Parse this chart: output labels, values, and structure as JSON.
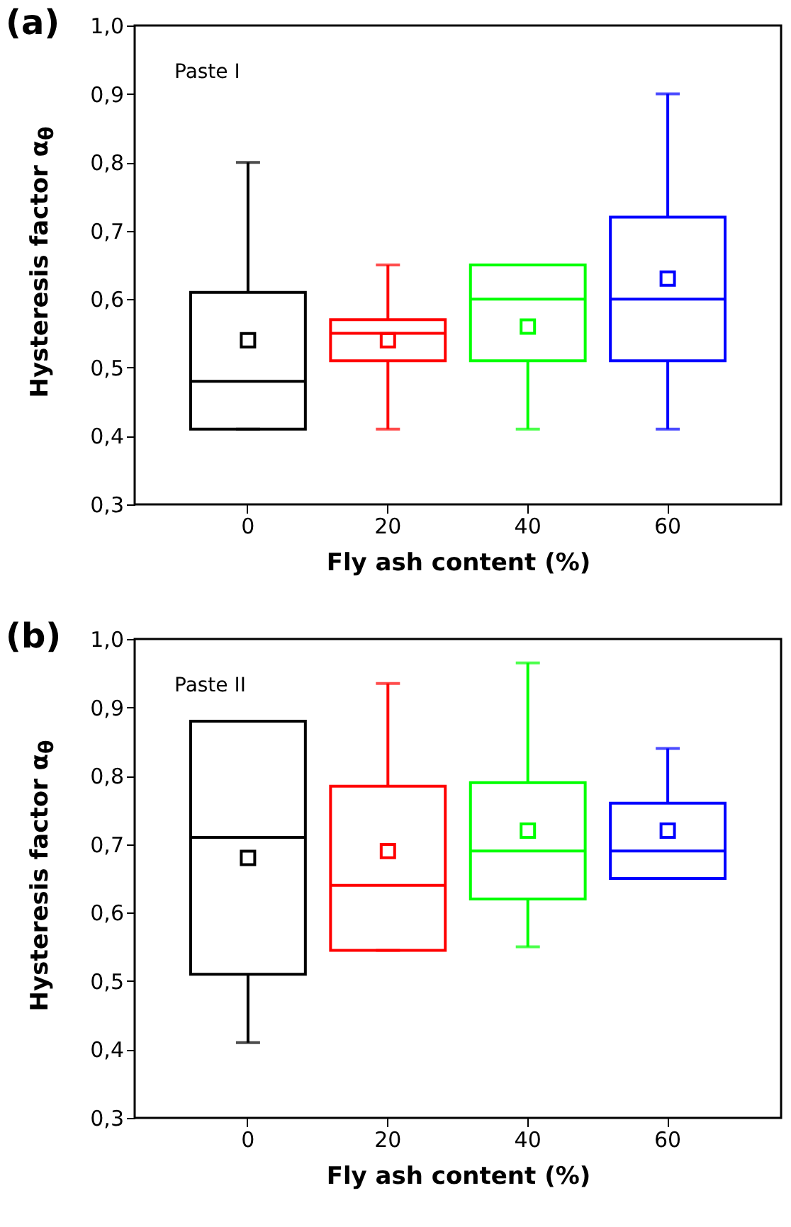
{
  "chart_data": [
    {
      "type": "box",
      "xlabel": "Fly ash content (%)",
      "ylabel": "Hysteresis factor α$_{θ}$",
      "annotations": [
        "(a)",
        "Paste I"
      ],
      "categories": [
        "0",
        "20",
        "40",
        "60"
      ],
      "colors": [
        "#000000",
        "#ff0000",
        "#00ff00",
        "#0000ff"
      ],
      "boxes": [
        {
          "low": 0.41,
          "q1": 0.41,
          "median": 0.48,
          "q3": 0.61,
          "high": 0.8,
          "mean": 0.54
        },
        {
          "low": 0.41,
          "q1": 0.51,
          "median": 0.55,
          "q3": 0.57,
          "high": 0.65,
          "mean": 0.54
        },
        {
          "low": 0.41,
          "q1": 0.51,
          "median": 0.6,
          "q3": 0.65,
          "high": 0.65,
          "mean": 0.56
        },
        {
          "low": 0.41,
          "q1": 0.51,
          "median": 0.6,
          "q3": 0.72,
          "high": 0.9,
          "mean": 0.63
        }
      ],
      "ylim": [
        0.3,
        1.0
      ],
      "yticks": [
        {
          "value": 0.3,
          "label": "0,3"
        },
        {
          "value": 0.4,
          "label": "0,4"
        },
        {
          "value": 0.5,
          "label": "0,5"
        },
        {
          "value": 0.6,
          "label": "0,6"
        },
        {
          "value": 0.7,
          "label": "0,7"
        },
        {
          "value": 0.8,
          "label": "0,8"
        },
        {
          "value": 0.9,
          "label": "0,9"
        },
        {
          "value": 1.0,
          "label": "1,0"
        }
      ],
      "marker": "square",
      "grid": false
    },
    {
      "type": "box",
      "xlabel": "Fly ash content (%)",
      "ylabel": "Hysteresis factor α$_{θ}$",
      "annotations": [
        "(b)",
        "Paste II"
      ],
      "categories": [
        "0",
        "20",
        "40",
        "60"
      ],
      "colors": [
        "#000000",
        "#ff0000",
        "#00ff00",
        "#0000ff"
      ],
      "boxes": [
        {
          "low": 0.41,
          "q1": 0.51,
          "median": 0.71,
          "q3": 0.88,
          "high": 0.88,
          "mean": 0.68
        },
        {
          "low": 0.545,
          "q1": 0.545,
          "median": 0.64,
          "q3": 0.785,
          "high": 0.935,
          "mean": 0.69
        },
        {
          "low": 0.55,
          "q1": 0.62,
          "median": 0.69,
          "q3": 0.79,
          "high": 0.965,
          "mean": 0.72
        },
        {
          "low": 0.65,
          "q1": 0.65,
          "median": 0.69,
          "q3": 0.76,
          "high": 0.84,
          "mean": 0.72
        }
      ],
      "ylim": [
        0.3,
        1.0
      ],
      "yticks": [
        {
          "value": 0.3,
          "label": "0,3"
        },
        {
          "value": 0.4,
          "label": "0,4"
        },
        {
          "value": 0.5,
          "label": "0,5"
        },
        {
          "value": 0.6,
          "label": "0,6"
        },
        {
          "value": 0.7,
          "label": "0,7"
        },
        {
          "value": 0.8,
          "label": "0,8"
        },
        {
          "value": 0.9,
          "label": "0,9"
        },
        {
          "value": 1.0,
          "label": "1,0"
        }
      ],
      "marker": "square",
      "grid": false
    }
  ]
}
